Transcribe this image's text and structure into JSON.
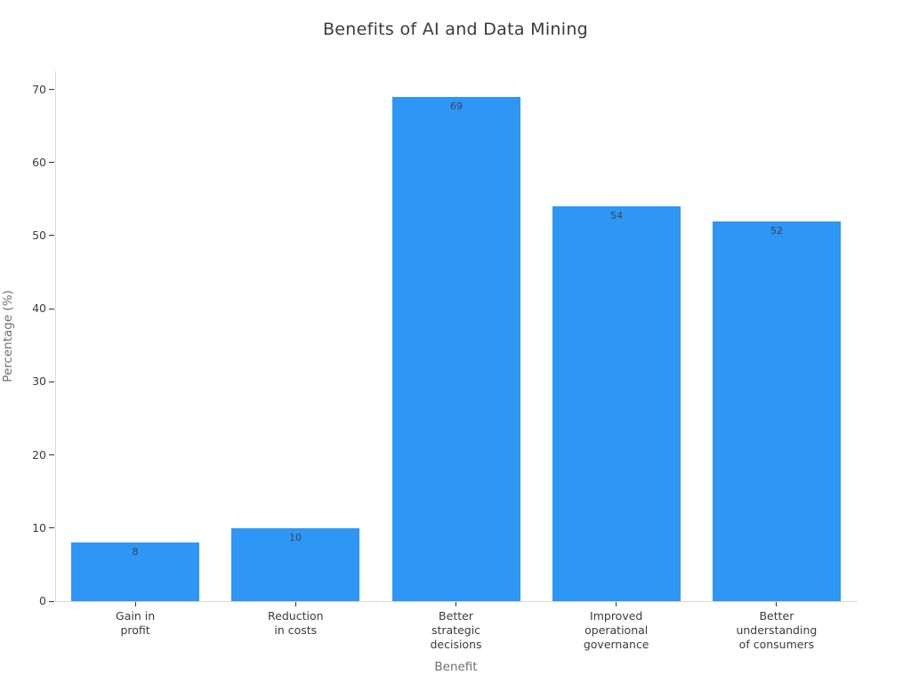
{
  "chart_data": {
    "type": "bar",
    "title": "Benefits of AI and Data Mining",
    "xlabel": "Benefit",
    "ylabel": "Percentage (%)",
    "categories": [
      "Gain in\nprofit",
      "Reduction\nin costs",
      "Better\nstrategic\ndecisions",
      "Improved\noperational\ngovernance",
      "Better\nunderstanding\nof consumers"
    ],
    "values": [
      8,
      10,
      69,
      54,
      52
    ],
    "value_labels": [
      "8",
      "10",
      "69",
      "54",
      "52"
    ],
    "yticks": [
      "0",
      "10",
      "20",
      "30",
      "40",
      "50",
      "60",
      "70"
    ],
    "ylim": [
      0,
      72.5
    ],
    "grid": false,
    "legend": null,
    "colors": {
      "bar_fill": "#2e96f5",
      "bar_value_text": "#3f4450",
      "axis_line": "#d9d9d9",
      "tick_mark": "#333333",
      "tick_label_text": "#3b3b3b",
      "axis_title_text": "#6f6f6f",
      "title_text": "#3a3a3a",
      "background": "#ffffff"
    }
  }
}
